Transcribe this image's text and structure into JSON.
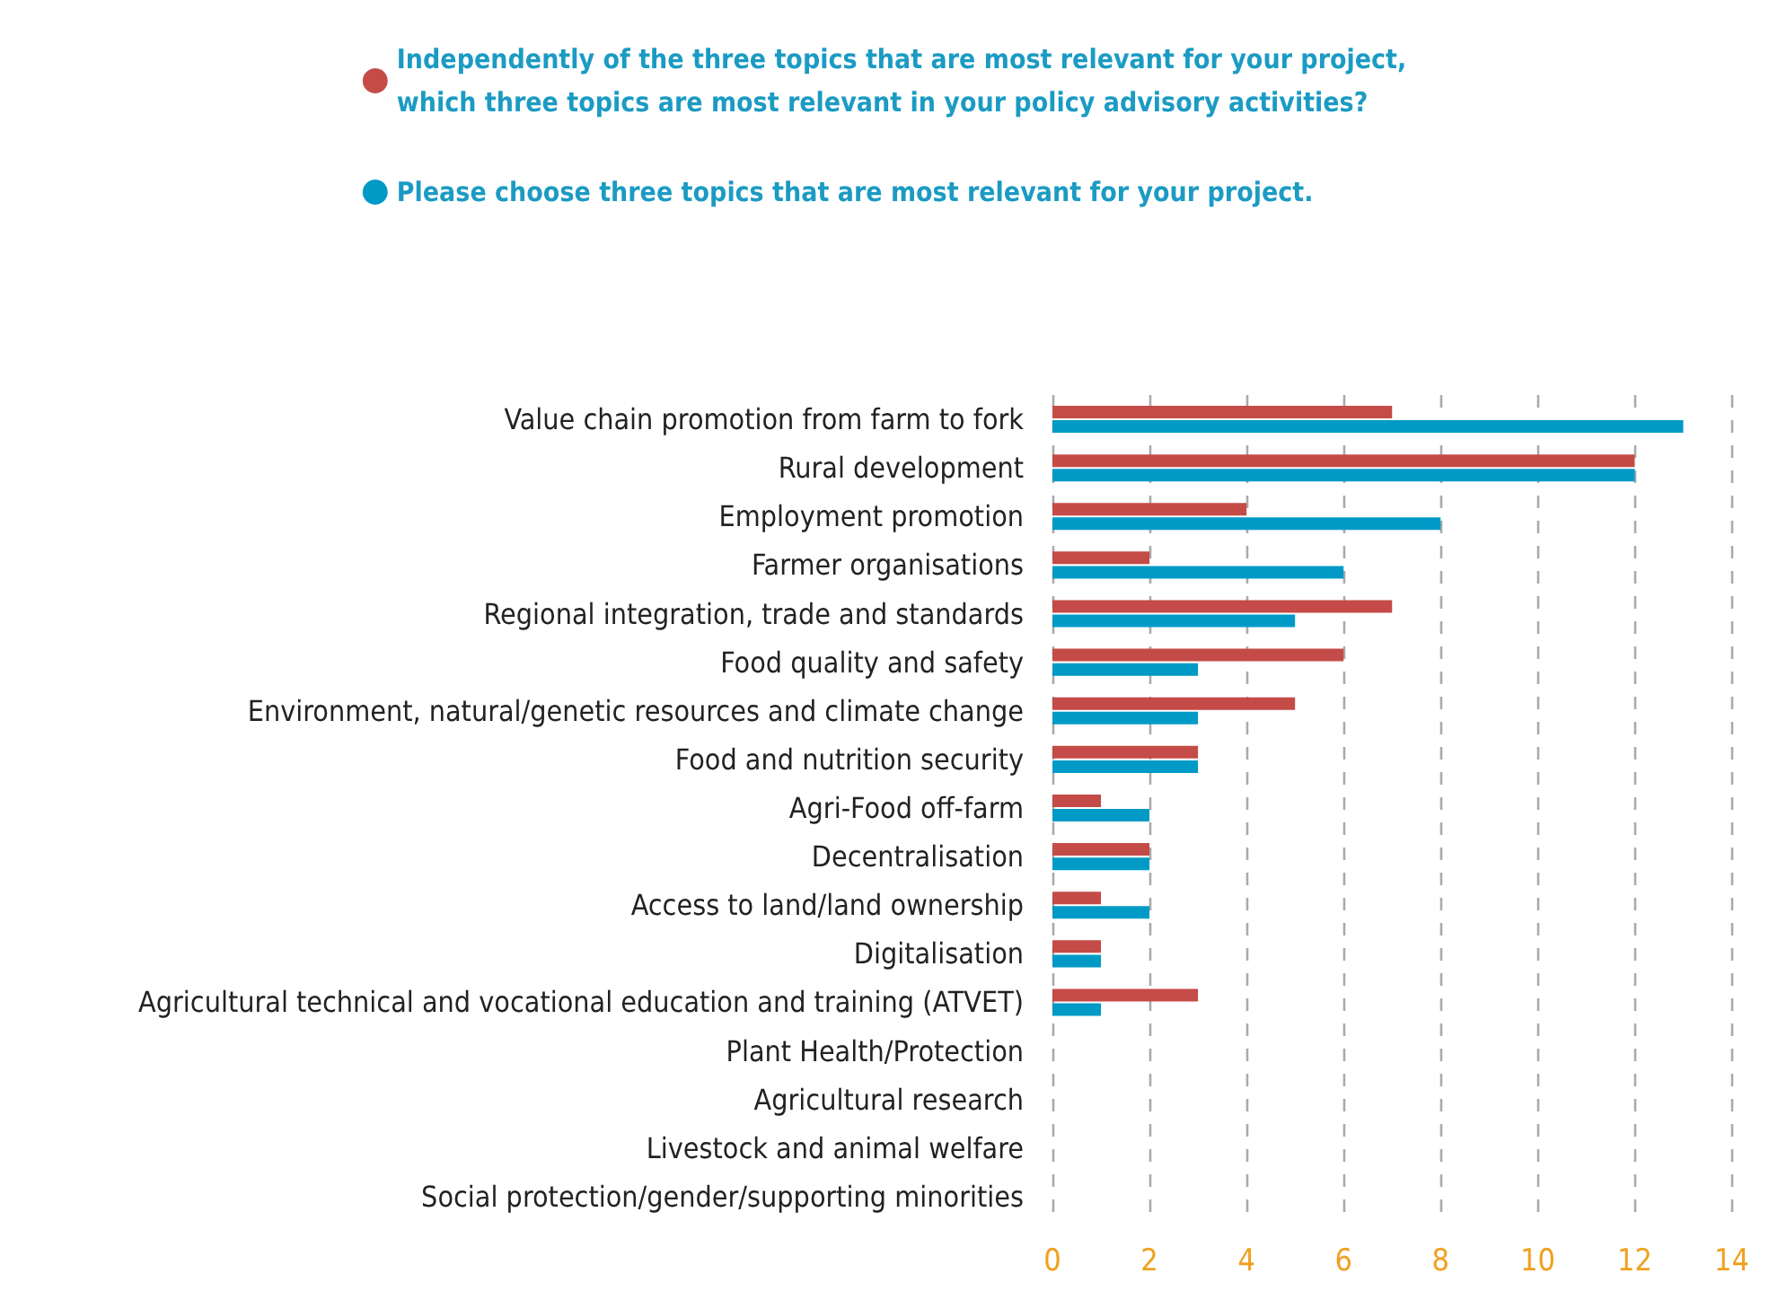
{
  "chart_data": {
    "type": "bar",
    "orientation": "horizontal",
    "categories": [
      "Value chain promotion from farm to fork",
      "Rural development",
      "Employment promotion",
      "Farmer organisations",
      "Regional integration, trade and standards",
      "Food quality and safety",
      "Environment, natural/genetic resources and climate change",
      "Food and nutrition security",
      "Agri-Food off-farm",
      "Decentralisation",
      "Access to land/land ownership",
      "Digitalisation",
      "Agricultural technical and vocational education and training (ATVET)",
      "Plant Health/Protection",
      "Agricultural research",
      "Livestock and animal welfare",
      "Social protection/gender/supporting minorities"
    ],
    "series": [
      {
        "name": "Independently of the three topics that are most relevant for your project,\nwhich three topics are most relevant in your policy advisory activities?",
        "color": "#c44b47",
        "values": [
          7,
          12,
          4,
          2,
          7,
          6,
          5,
          3,
          1,
          2,
          1,
          1,
          3,
          0,
          0,
          0,
          0
        ]
      },
      {
        "name": "Please choose three topics that are most relevant for your project.",
        "color": "#019ac6",
        "values": [
          13,
          12,
          8,
          6,
          5,
          3,
          3,
          3,
          2,
          2,
          2,
          1,
          1,
          0,
          0,
          0,
          0
        ]
      }
    ],
    "xlim": [
      0,
      14
    ],
    "xticks": [
      0,
      2,
      4,
      6,
      8,
      10,
      12,
      14
    ],
    "grid": "x",
    "legend": "top"
  }
}
